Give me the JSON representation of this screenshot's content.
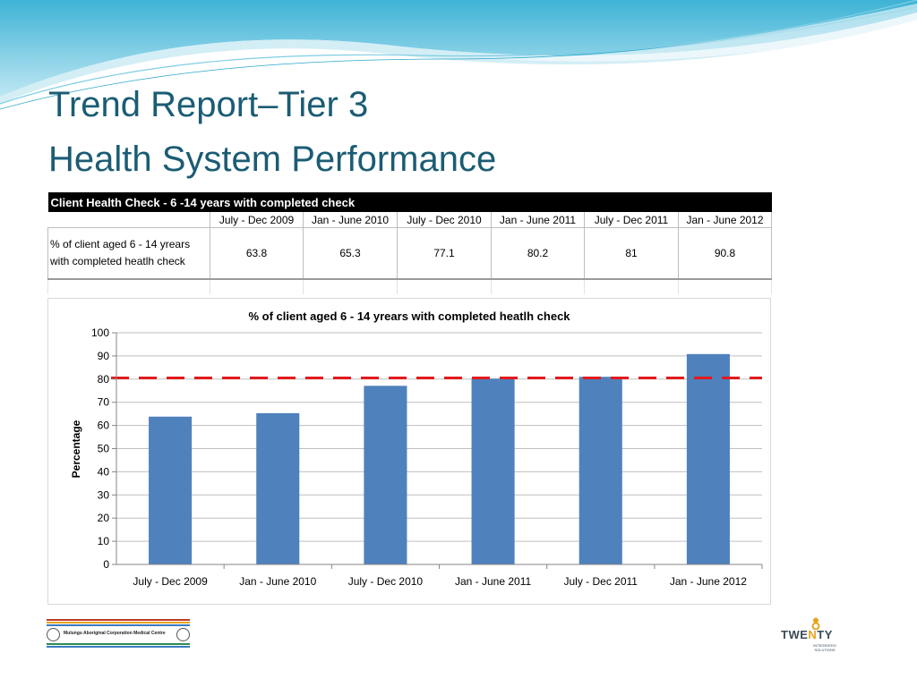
{
  "slide": {
    "title_line_1": "Trend Report–Tier 3",
    "title_line_2": "Health System Performance"
  },
  "table": {
    "header": "Client Health Check - 6 -14 years with completed check",
    "periods": [
      "July - Dec 2009",
      "Jan - June 2010",
      "July - Dec 2010",
      "Jan - June 2011",
      "July - Dec 2011",
      "Jan - June 2012"
    ],
    "metric_label_line1": "% of client aged 6 - 14 yrears",
    "metric_label_line2": "with completed heatlh check",
    "values": [
      "63.8",
      "65.3",
      "77.1",
      "80.2",
      "81",
      "90.8"
    ]
  },
  "chart_data": {
    "type": "bar",
    "title": "% of client aged 6 - 14 yrears with completed heatlh check",
    "ylabel": "Percentage",
    "xlabel": "",
    "categories": [
      "July - Dec 2009",
      "Jan - June 2010",
      "July - Dec 2010",
      "Jan - June 2011",
      "July - Dec 2011",
      "Jan - June 2012"
    ],
    "values": [
      63.8,
      65.3,
      77.1,
      80.2,
      81,
      90.8
    ],
    "ylim": [
      0,
      100
    ],
    "yticks": [
      0,
      10,
      20,
      30,
      40,
      50,
      60,
      70,
      80,
      90,
      100
    ],
    "target_line": 80.5,
    "grid": true,
    "legend": "none",
    "colors": {
      "bar": "#4f81bd",
      "target": "#e31a1c"
    }
  },
  "footer": {
    "left_logo_text": "Mulungu Aboriginal Corporation Medical Centre",
    "right_logo_word_a": "TWE",
    "right_logo_word_n": "N",
    "right_logo_word_b": "TY",
    "right_logo_sub": "INTEGRATED\nSOLUTIONS"
  },
  "colors": {
    "title": "#1b5c74",
    "swoosh_light": "#d4eef6",
    "swoosh_mid": "#7fcde3",
    "swoosh_dark": "#2aa7c9"
  }
}
